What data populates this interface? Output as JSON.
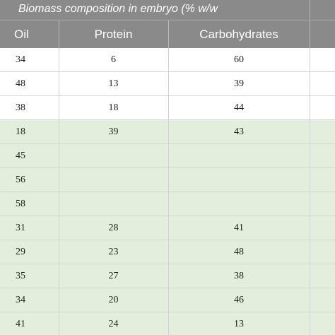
{
  "table": {
    "title": "Biomass composition in embryo (% w/w",
    "headers": {
      "oil": "Oil",
      "protein": "Protein",
      "carbohydrates": "Carbohydrates"
    },
    "rows": [
      {
        "oil": "34",
        "protein": "6",
        "carbohydrates": "60",
        "shade": "white"
      },
      {
        "oil": "48",
        "protein": "13",
        "carbohydrates": "39",
        "shade": "white"
      },
      {
        "oil": "38",
        "protein": "18",
        "carbohydrates": "44",
        "shade": "white"
      },
      {
        "oil": "18",
        "protein": "39",
        "carbohydrates": "43",
        "shade": "green"
      },
      {
        "oil": "45",
        "protein": "",
        "carbohydrates": "",
        "shade": "green"
      },
      {
        "oil": "56",
        "protein": "",
        "carbohydrates": "",
        "shade": "green"
      },
      {
        "oil": "58",
        "protein": "",
        "carbohydrates": "",
        "shade": "green"
      },
      {
        "oil": "31",
        "protein": "28",
        "carbohydrates": "41",
        "shade": "green"
      },
      {
        "oil": "29",
        "protein": "23",
        "carbohydrates": "48",
        "shade": "green"
      },
      {
        "oil": "35",
        "protein": "27",
        "carbohydrates": "38",
        "shade": "green"
      },
      {
        "oil": "34",
        "protein": "20",
        "carbohydrates": "46",
        "shade": "green"
      },
      {
        "oil": "41",
        "protein": "24",
        "carbohydrates": "13",
        "shade": "green"
      }
    ]
  },
  "colors": {
    "header_bg": "#8a8a8a",
    "header_text": "#ffffff",
    "row_green": "#e3eedd",
    "row_white": "#ffffff"
  }
}
